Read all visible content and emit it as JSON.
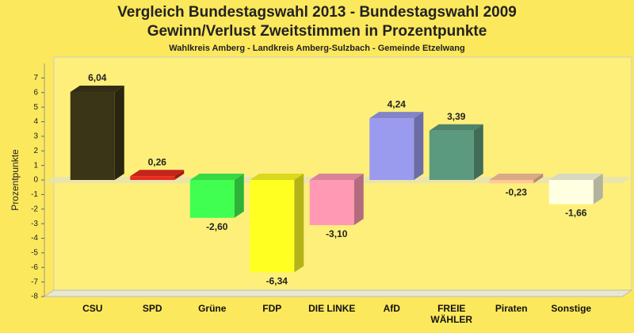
{
  "chart_data": {
    "type": "bar3d",
    "title": [
      "Vergleich Bundestagswahl 2013 - Bundestagswahl 2009",
      "Gewinn/Verlust Zweitstimmen in Prozentpunkte"
    ],
    "subtitle": "Wahlkreis Amberg - Landkreis Amberg-Sulzbach - Gemeinde Etzelwang",
    "y_label": "Prozentpunkte",
    "categories": [
      "CSU",
      "SPD",
      "Grüne",
      "FDP",
      "DIE LINKE",
      "AfD",
      "FREIE WÄHLER",
      "Piraten",
      "Sonstige"
    ],
    "values": [
      6.04,
      0.26,
      -2.6,
      -6.34,
      -3.1,
      4.24,
      3.39,
      -0.23,
      -1.66
    ],
    "value_labels": [
      "6,04",
      "0,26",
      "-2,60",
      "-6,34",
      "-3,10",
      "4,24",
      "3,39",
      "-0,23",
      "-1,66"
    ],
    "colors": [
      "#3b3517",
      "#e82a1e",
      "#40ff50",
      "#ffff22",
      "#ff99b4",
      "#9a9aee",
      "#5b9a7e",
      "#ffc89a",
      "#ffffe2"
    ],
    "ylim": [
      -8,
      8
    ],
    "yticks": [
      -8,
      -7,
      -6,
      -5,
      -4,
      -3,
      -2,
      -1,
      0,
      1,
      2,
      3,
      4,
      5,
      6,
      7
    ],
    "grid": false
  }
}
